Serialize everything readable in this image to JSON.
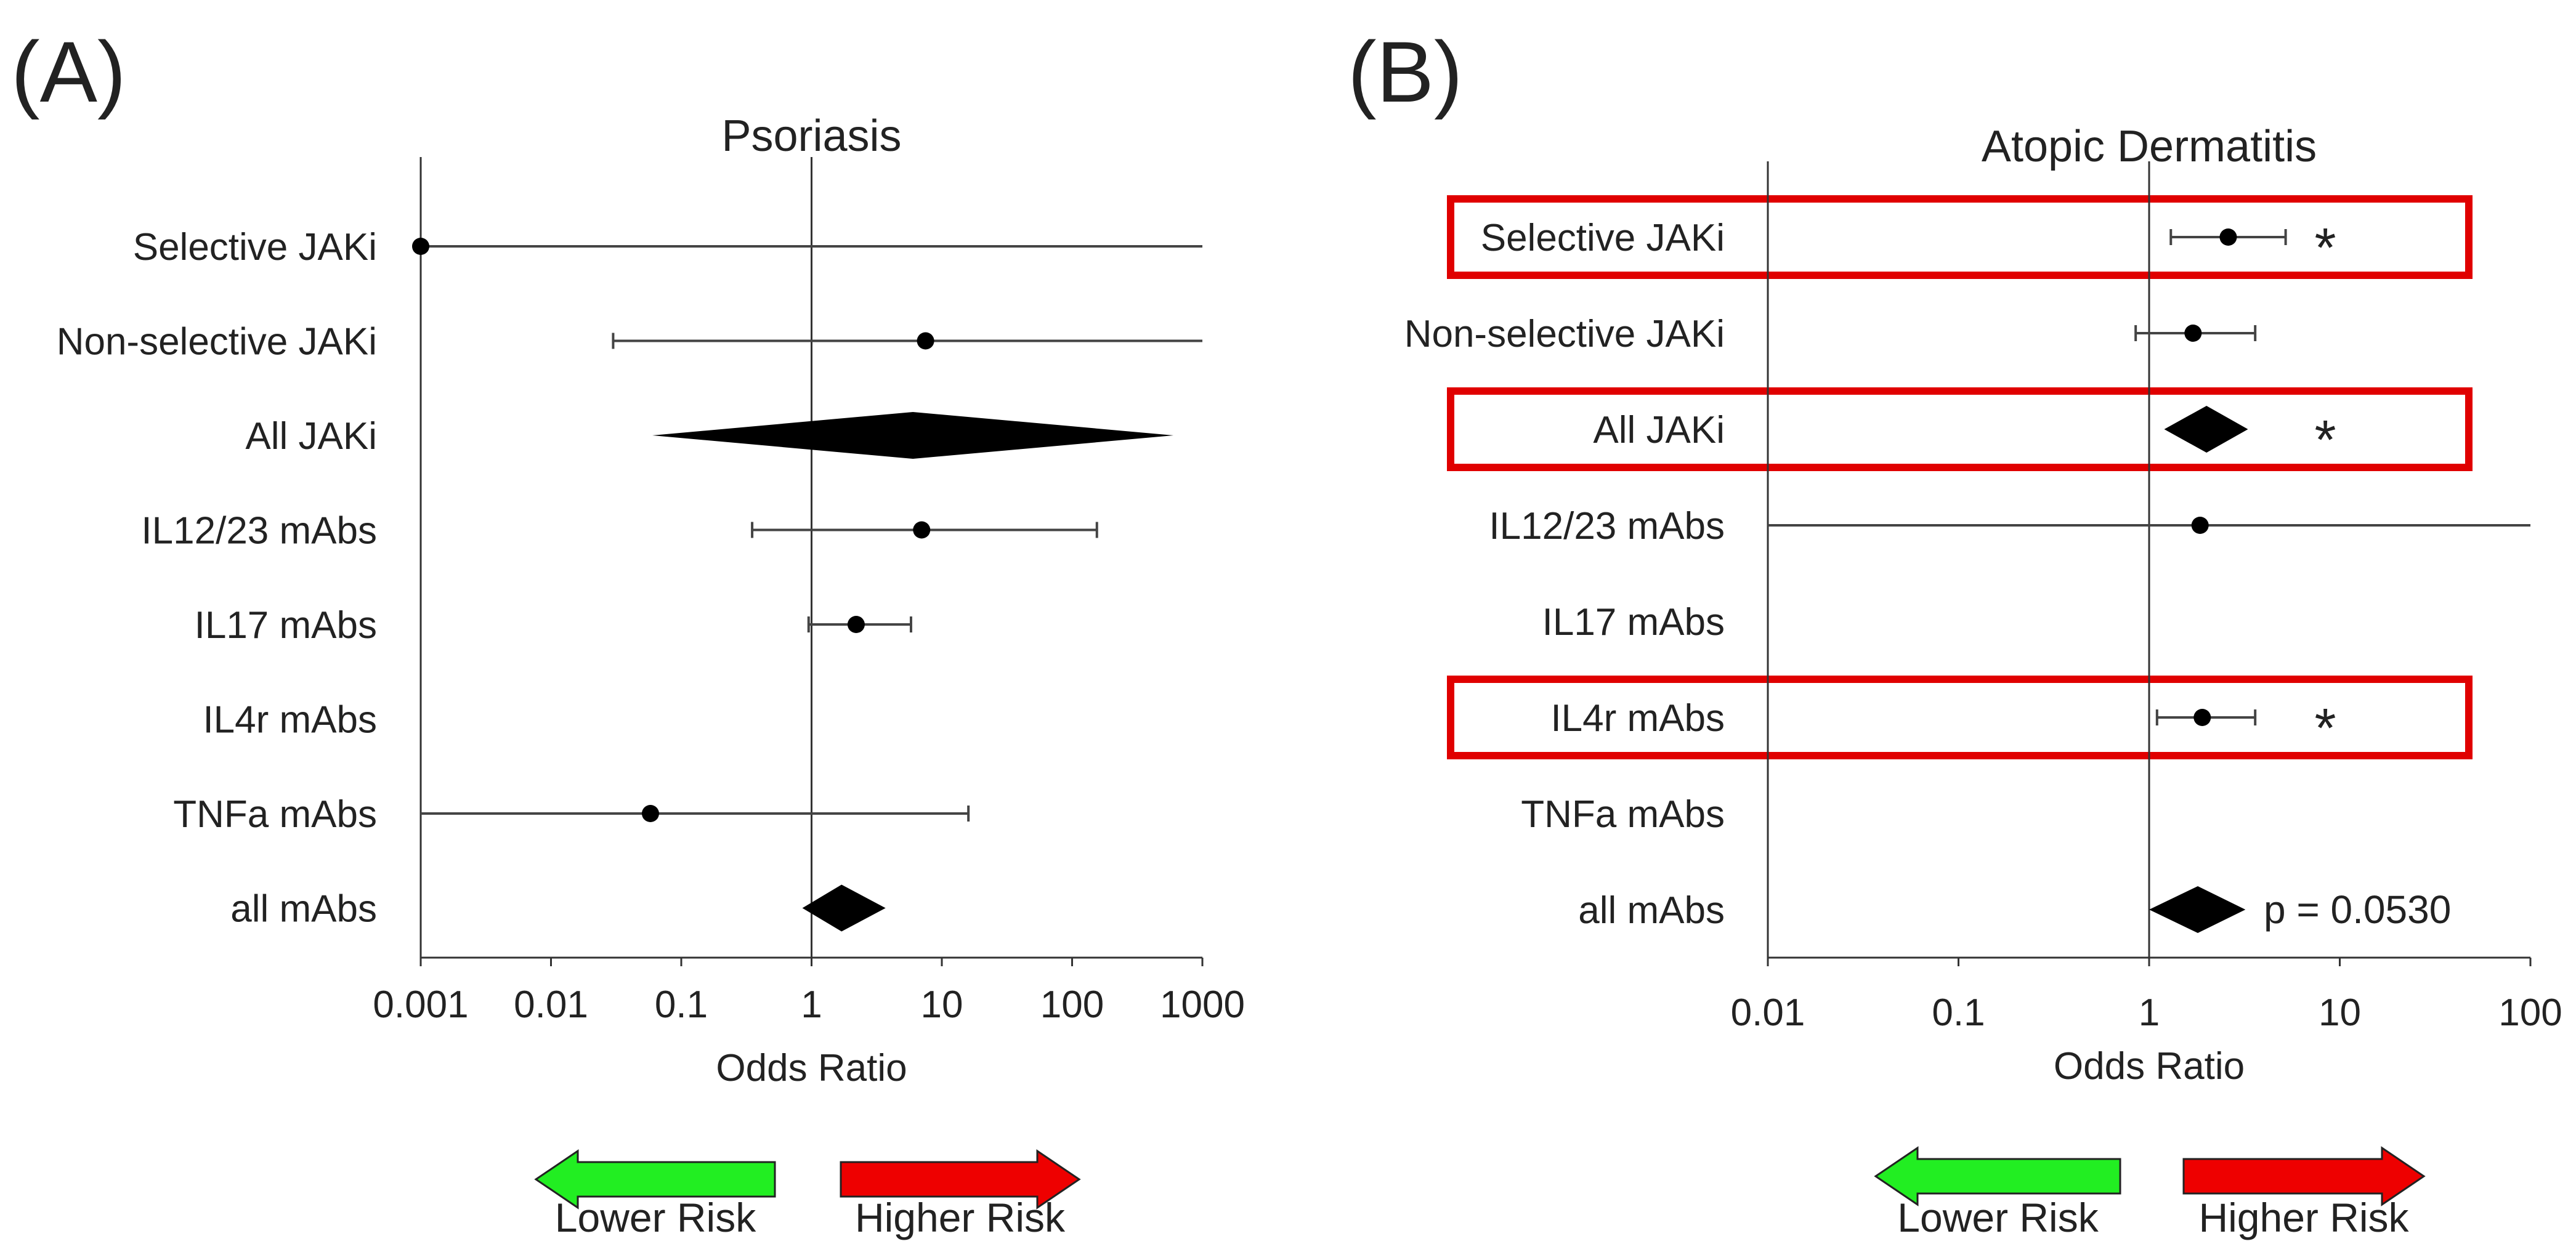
{
  "chart_data": [
    {
      "type": "forest",
      "panel_label": "(A)",
      "title": "Psoriasis",
      "xlabel": "Odds Ratio",
      "xscale": "log",
      "xlim": [
        0.001,
        1000
      ],
      "ticks": [
        {
          "value": 0.001,
          "label": "0.001"
        },
        {
          "value": 0.01,
          "label": "0.01"
        },
        {
          "value": 0.1,
          "label": "0.1"
        },
        {
          "value": 1,
          "label": "1"
        },
        {
          "value": 10,
          "label": "10"
        },
        {
          "value": 100,
          "label": "100"
        },
        {
          "value": 1000,
          "label": "1000"
        }
      ],
      "reference_line": 1,
      "rows": [
        {
          "label": "Selective JAKi",
          "kind": "point",
          "estimate": 0.001,
          "lower": 0.001,
          "upper": 1000
        },
        {
          "label": "Non-selective JAKi",
          "kind": "point",
          "estimate": 7.5,
          "lower": 0.03,
          "upper": 1000
        },
        {
          "label": "All JAKi",
          "kind": "diamond",
          "estimate": 6.0,
          "lower": 0.06,
          "upper": 600
        },
        {
          "label": "IL12/23 mAbs",
          "kind": "point",
          "estimate": 7.0,
          "lower": 0.35,
          "upper": 155
        },
        {
          "label": "IL17 mAbs",
          "kind": "point",
          "estimate": 2.2,
          "lower": 0.95,
          "upper": 5.8
        },
        {
          "label": "IL4r mAbs",
          "kind": "none"
        },
        {
          "label": "TNFa mAbs",
          "kind": "point",
          "estimate": 0.058,
          "lower": 0.001,
          "upper": 16
        },
        {
          "label": "all mAbs",
          "kind": "diamond",
          "estimate": 1.7,
          "lower": 0.85,
          "upper": 3.7
        }
      ],
      "highlighted_rows": [],
      "legend": {
        "left": "Lower Risk",
        "right": "Higher Risk",
        "left_color": "#22ee22",
        "right_color": "#ee0000"
      }
    },
    {
      "type": "forest",
      "panel_label": "(B)",
      "title": "Atopic Dermatitis",
      "xlabel": "Odds Ratio",
      "xscale": "log",
      "xlim": [
        0.01,
        100
      ],
      "ticks": [
        {
          "value": 0.01,
          "label": "0.01"
        },
        {
          "value": 0.1,
          "label": "0.1"
        },
        {
          "value": 1,
          "label": "1"
        },
        {
          "value": 10,
          "label": "10"
        },
        {
          "value": 100,
          "label": "100"
        }
      ],
      "reference_line": 1,
      "rows": [
        {
          "label": "Selective JAKi",
          "kind": "point",
          "estimate": 2.6,
          "lower": 1.3,
          "upper": 5.2,
          "marker": "*"
        },
        {
          "label": "Non-selective JAKi",
          "kind": "point",
          "estimate": 1.7,
          "lower": 0.85,
          "upper": 3.6
        },
        {
          "label": "All JAKi",
          "kind": "diamond",
          "estimate": 2.0,
          "lower": 1.2,
          "upper": 3.3,
          "marker": "*"
        },
        {
          "label": "IL12/23 mAbs",
          "kind": "point",
          "estimate": 1.85,
          "lower": 0.01,
          "upper": 100
        },
        {
          "label": "IL17 mAbs",
          "kind": "none"
        },
        {
          "label": "IL4r mAbs",
          "kind": "point",
          "estimate": 1.9,
          "lower": 1.1,
          "upper": 3.6,
          "marker": "*"
        },
        {
          "label": "TNFa mAbs",
          "kind": "none"
        },
        {
          "label": "all mAbs",
          "kind": "diamond",
          "estimate": 1.8,
          "lower": 1.0,
          "upper": 3.2,
          "annotation": "p = 0.0530"
        }
      ],
      "highlighted_rows": [
        0,
        2,
        5
      ],
      "highlight_color": "#e00000",
      "legend": {
        "left": "Lower Risk",
        "right": "Higher Risk",
        "left_color": "#22ee22",
        "right_color": "#ee0000"
      }
    }
  ]
}
